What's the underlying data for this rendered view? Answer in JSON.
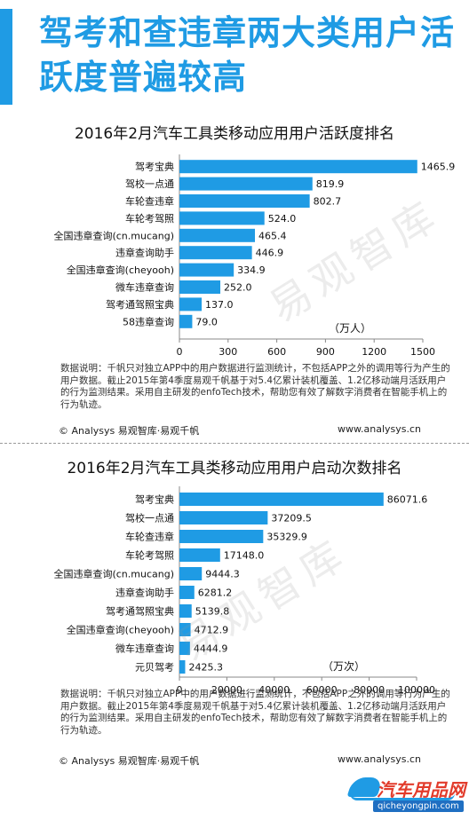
{
  "header": {
    "title": "驾考和查违章两大类用户活跃度普遍较高"
  },
  "charts": [
    {
      "title": "2016年2月汽车工具类移动应用用户活跃度排名",
      "unit": "（万人）",
      "note": "数据说明：千帆只对独立APP中的用户数据进行监测统计，不包括APP之外的调用等行为产生的用户数据。截止2015年第4季度易观千帆基于对5.4亿累计装机覆盖、1.2亿移动端月活跃用户的行为监测结果。采用自主研发的enfoTech技术，帮助您有效了解数字消费者在智能手机上的行为轨迹。",
      "footer_left": "© Analysys 易观智库·易观千帆",
      "footer_right": "www.analysys.cn"
    },
    {
      "title": "2016年2月汽车工具类移动应用用户启动次数排名",
      "unit": "（万次）",
      "note": "数据说明：千帆只对独立APP中的用户数据进行监测统计，不包括APP之外的调用等行为产生的用户数据。截止2015年第4季度易观千帆基于对5.4亿累计装机覆盖、1.2亿移动端月活跃用户的行为监测结果。采用自主研发的enfoTech技术，帮助您有效了解数字消费者在智能手机上的行为轨迹。",
      "footer_left": "© Analysys 易观智库·易观千帆",
      "footer_right": "www.analysys.cn"
    }
  ],
  "chart_data": [
    {
      "type": "bar",
      "orientation": "horizontal",
      "title": "2016年2月汽车工具类移动应用用户活跃度排名",
      "categories": [
        "驾考宝典",
        "驾校一点通",
        "车轮查违章",
        "车轮考驾照",
        "全国违章查询(cn.mucang)",
        "违章查询助手",
        "全国违章查询(cheyooh)",
        "微车违章查询",
        "驾考通驾照宝典",
        "58违章查询"
      ],
      "values": [
        1465.9,
        819.9,
        802.7,
        524.0,
        465.4,
        446.9,
        334.9,
        252.0,
        137.0,
        79.0
      ],
      "value_labels": [
        "1465.9",
        "819.9",
        "802.7",
        "524.0",
        "465.4",
        "446.9",
        "334.9",
        "252.0",
        "137.0",
        "79.0"
      ],
      "xlim": [
        0,
        1500
      ],
      "ticks": [
        "0",
        "300",
        "600",
        "900",
        "1200",
        "1500"
      ],
      "unit_label": "（万人）",
      "color": "#1f9be4"
    },
    {
      "type": "bar",
      "orientation": "horizontal",
      "title": "2016年2月汽车工具类移动应用用户启动次数排名",
      "categories": [
        "驾考宝典",
        "驾校一点通",
        "车轮查违章",
        "车轮考驾照",
        "全国违章查询(cn.mucang)",
        "违章查询助手",
        "驾考通驾照宝典",
        "全国违章查询(cheyooh)",
        "微车违章查询",
        "元贝驾考"
      ],
      "values": [
        86071.6,
        37209.5,
        35329.9,
        17148.0,
        9444.3,
        6281.2,
        5139.8,
        4712.9,
        4444.9,
        2425.3
      ],
      "value_labels": [
        "86071.6",
        "37209.5",
        "35329.9",
        "17148.0",
        "9444.3",
        "6281.2",
        "5139.8",
        "4712.9",
        "4444.9",
        "2425.3"
      ],
      "xlim": [
        0,
        100000
      ],
      "ticks": [
        "0",
        "20000",
        "40000",
        "60000",
        "80000",
        "100000"
      ],
      "unit_label": "（万次）",
      "color": "#1f9be4"
    }
  ],
  "watermarks": [
    "易观智库",
    "易观智库"
  ],
  "logo": {
    "main": "汽车用品网",
    "sub": "qicheyongpin.com"
  }
}
